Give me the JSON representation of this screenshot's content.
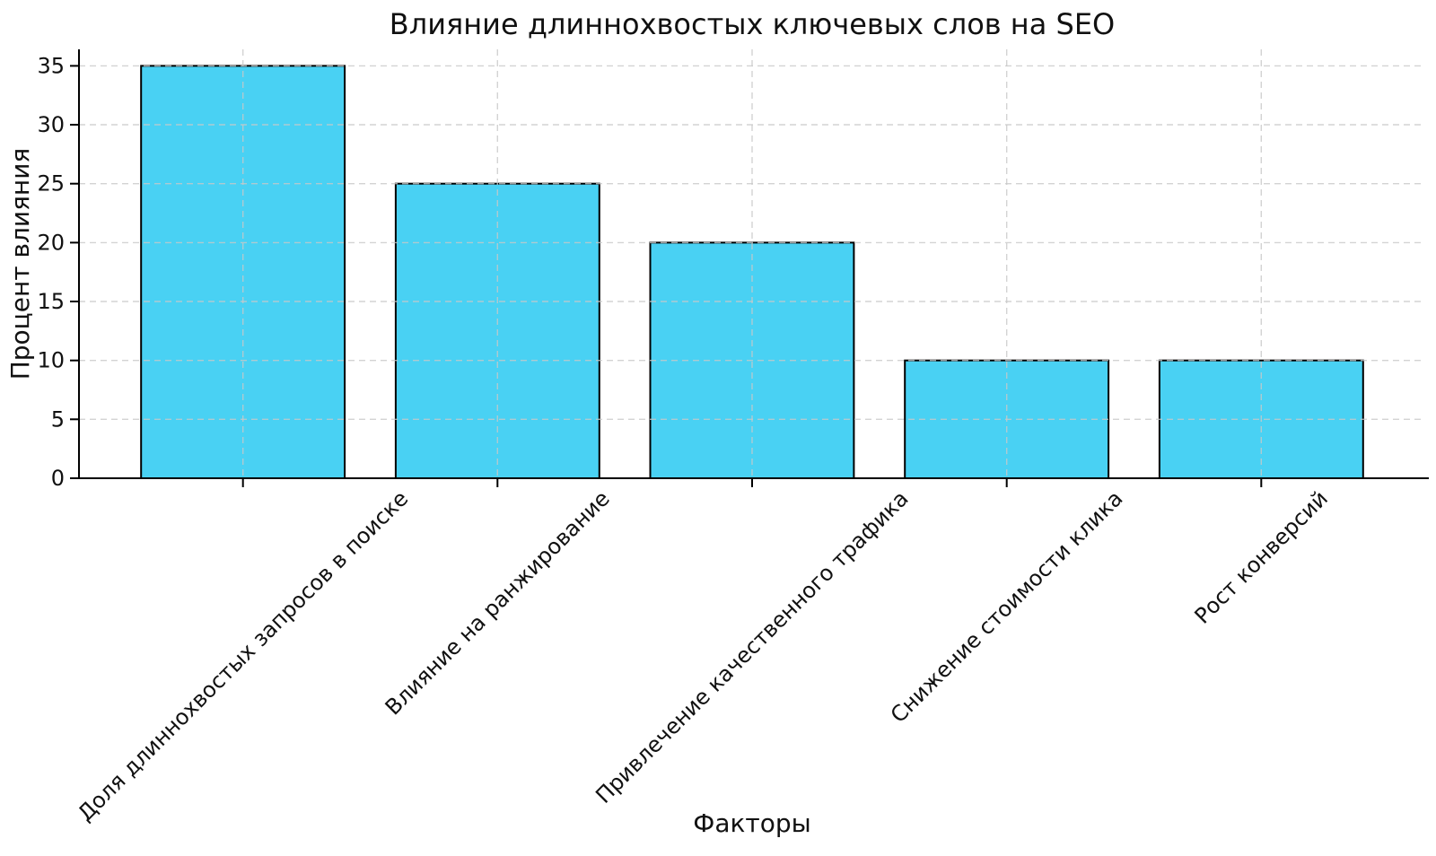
{
  "chart_data": {
    "type": "bar",
    "title": "Влияние длиннохвостых ключевых слов на SEO",
    "xlabel": "Факторы",
    "ylabel": "Процент влияния",
    "categories": [
      "Доля длиннохвостых запросов в поиске",
      "Влияние на ранжирование",
      "Привлечение качественного трафика",
      "Снижение стоимости клика",
      "Рост конверсий"
    ],
    "values": [
      35,
      25,
      20,
      10,
      10
    ],
    "yticks": [
      0,
      5,
      10,
      15,
      20,
      25,
      30,
      35
    ],
    "ytick_labels": [
      "0",
      "5",
      "10",
      "15",
      "20",
      "25",
      "30",
      "35"
    ],
    "ylim": [
      0,
      36.4
    ],
    "x_tick_rotation_deg": 45,
    "grid": true,
    "grid_style": "dashed",
    "legend_position": "none",
    "colors": {
      "bar_fill": "#49D1F3",
      "bar_edge": "#000000",
      "grid": "#c8c8c8",
      "axis": "#000000",
      "text": "#111111",
      "background": "#ffffff"
    }
  }
}
